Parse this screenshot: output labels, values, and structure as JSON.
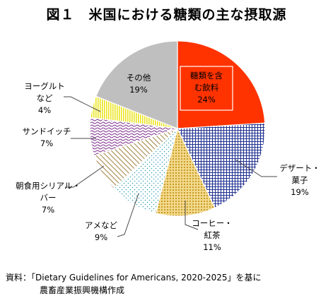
{
  "title": "図１　米国における糖類の主な摂取源",
  "note": {
    "line1": "資料：「Dietary Guidelines for Americans, 2020-2025」を基に",
    "line2": "農畜産業振興機構作成"
  },
  "chart_data": {
    "type": "pie",
    "title": "図１　米国における糖類の主な摂取源",
    "slices": [
      {
        "label": [
          "糖類を含",
          "む飲料"
        ],
        "display": "24%",
        "value": 24,
        "color": "#ff3300",
        "pattern": "solid-red"
      },
      {
        "label": [
          "デザート・",
          "菓子"
        ],
        "display": "19%",
        "value": 19,
        "color": "#1f2f8f",
        "pattern": "grid"
      },
      {
        "label": [
          "コーヒー・",
          "紅茶"
        ],
        "display": "11%",
        "value": 11,
        "color": "#d9b24a",
        "pattern": "dots"
      },
      {
        "label": [
          "アメなど"
        ],
        "display": "9%",
        "value": 9,
        "color": "#37a0b8",
        "pattern": "diamond"
      },
      {
        "label": [
          "朝食用シリアル・",
          "バー"
        ],
        "display": "7%",
        "value": 7,
        "color": "#a08040",
        "pattern": "diagonal"
      },
      {
        "label": [
          "サンドイッチ"
        ],
        "display": "7%",
        "value": 7,
        "color": "#7a2a8a",
        "pattern": "wave"
      },
      {
        "label": [
          "ヨーグルト",
          "など"
        ],
        "display": "4%",
        "value": 4,
        "color": "#e8e000",
        "pattern": "vertical"
      },
      {
        "label": [
          "その他"
        ],
        "display": "19%",
        "value": 19,
        "color": "#c0c0c0",
        "pattern": "solid-gray"
      }
    ]
  }
}
